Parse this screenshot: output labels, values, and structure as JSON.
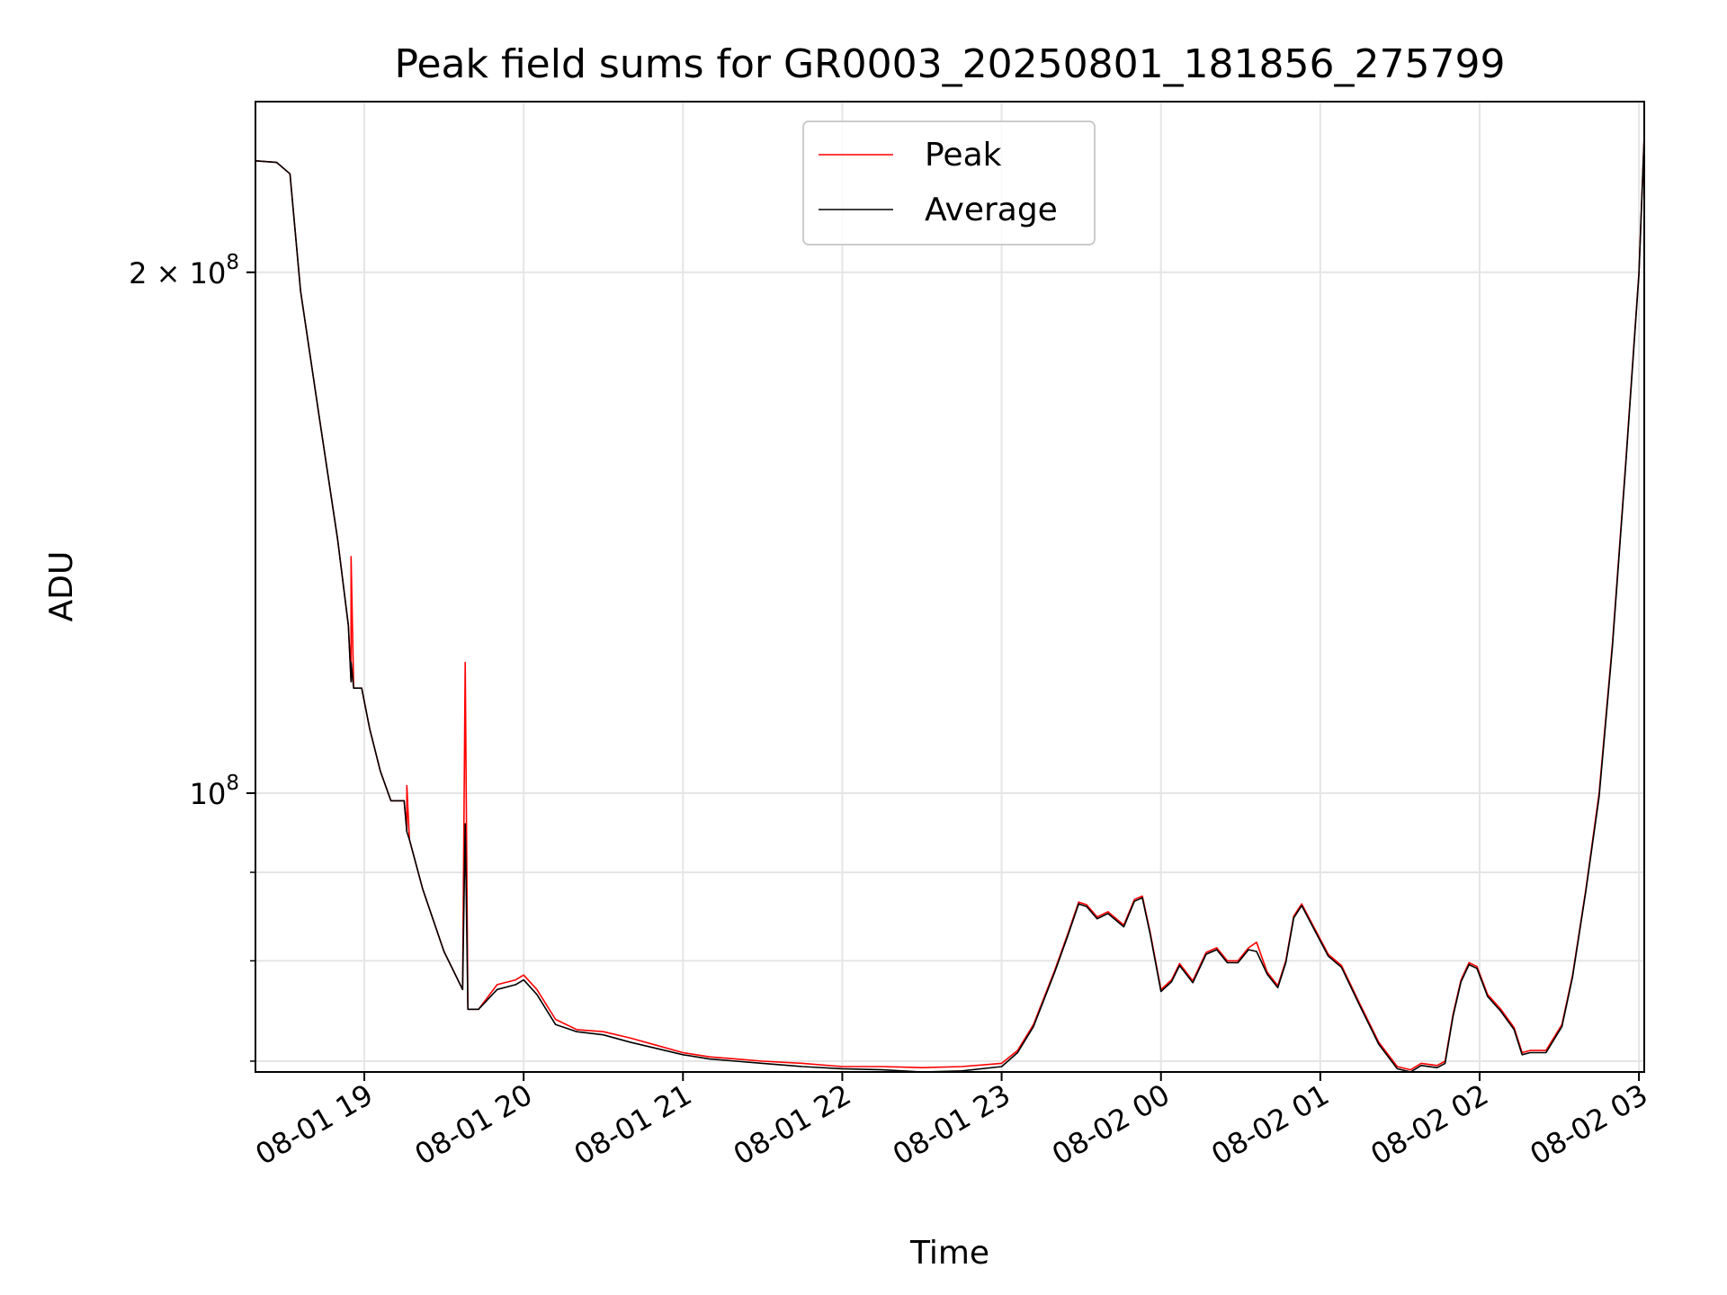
{
  "chart_data": {
    "type": "line",
    "title": "Peak field sums for GR0003_20250801_181856_275799",
    "xlabel": "Time",
    "ylabel": "ADU",
    "y_scale": "log",
    "grid": true,
    "legend_position": "top-center",
    "xlim": [
      "2025-08-01 18:19",
      "2025-08-02 03:02"
    ],
    "ylim": [
      69000000,
      251000000
    ],
    "x_ticks": [
      {
        "label": "08-01 19",
        "time": "2025-08-01 19:00"
      },
      {
        "label": "08-01 20",
        "time": "2025-08-01 20:00"
      },
      {
        "label": "08-01 21",
        "time": "2025-08-01 21:00"
      },
      {
        "label": "08-01 22",
        "time": "2025-08-01 22:00"
      },
      {
        "label": "08-01 23",
        "time": "2025-08-01 23:00"
      },
      {
        "label": "08-02 00",
        "time": "2025-08-02 00:00"
      },
      {
        "label": "08-02 01",
        "time": "2025-08-02 01:00"
      },
      {
        "label": "08-02 02",
        "time": "2025-08-02 02:00"
      },
      {
        "label": "08-02 03",
        "time": "2025-08-02 03:00"
      }
    ],
    "y_major_ticks": [
      {
        "value": 100000000,
        "base": "10",
        "exp": "8",
        "mult": ""
      },
      {
        "value": 200000000,
        "base": "10",
        "exp": "8",
        "mult": "2 × "
      }
    ],
    "y_minor_ticks": [
      70000000,
      80000000,
      90000000
    ],
    "series": [
      {
        "name": "Peak",
        "color": "#ff0000",
        "points": [
          [
            "2025-08-01 18:19",
            232000000
          ],
          [
            "2025-08-01 18:27",
            231500000
          ],
          [
            "2025-08-01 18:32",
            228000000
          ],
          [
            "2025-08-01 18:36",
            195000000
          ],
          [
            "2025-08-01 18:43",
            165000000
          ],
          [
            "2025-08-01 18:50",
            140000000
          ],
          [
            "2025-08-01 18:54",
            125000000
          ],
          [
            "2025-08-01 18:55",
            116000000
          ],
          [
            "2025-08-01 18:55",
            137000000
          ],
          [
            "2025-08-01 18:56",
            115000000
          ],
          [
            "2025-08-01 18:59",
            115000000
          ],
          [
            "2025-08-01 19:02",
            109000000
          ],
          [
            "2025-08-01 19:06",
            103000000
          ],
          [
            "2025-08-01 19:10",
            99000000
          ],
          [
            "2025-08-01 19:15",
            99000000
          ],
          [
            "2025-08-01 19:16",
            95000000
          ],
          [
            "2025-08-01 19:16",
            101000000
          ],
          [
            "2025-08-01 19:17",
            94000000
          ],
          [
            "2025-08-01 19:22",
            88000000
          ],
          [
            "2025-08-01 19:30",
            81000000
          ],
          [
            "2025-08-01 19:37",
            77000000
          ],
          [
            "2025-08-01 19:38",
            119000000
          ],
          [
            "2025-08-01 19:39",
            75000000
          ],
          [
            "2025-08-01 19:43",
            75000000
          ],
          [
            "2025-08-01 19:50",
            77500000
          ],
          [
            "2025-08-01 19:57",
            78000000
          ],
          [
            "2025-08-01 20:00",
            78500000
          ],
          [
            "2025-08-01 20:05",
            77000000
          ],
          [
            "2025-08-01 20:12",
            74000000
          ],
          [
            "2025-08-01 20:20",
            73000000
          ],
          [
            "2025-08-01 20:30",
            72800000
          ],
          [
            "2025-08-01 20:40",
            72200000
          ],
          [
            "2025-08-01 20:50",
            71500000
          ],
          [
            "2025-08-01 21:00",
            70800000
          ],
          [
            "2025-08-01 21:10",
            70400000
          ],
          [
            "2025-08-01 21:20",
            70200000
          ],
          [
            "2025-08-01 21:30",
            70000000
          ],
          [
            "2025-08-01 21:45",
            69800000
          ],
          [
            "2025-08-01 22:00",
            69500000
          ],
          [
            "2025-08-01 22:15",
            69500000
          ],
          [
            "2025-08-01 22:30",
            69400000
          ],
          [
            "2025-08-01 22:45",
            69500000
          ],
          [
            "2025-08-01 23:00",
            69800000
          ],
          [
            "2025-08-01 23:06",
            71000000
          ],
          [
            "2025-08-01 23:12",
            73500000
          ],
          [
            "2025-08-01 23:20",
            79000000
          ],
          [
            "2025-08-01 23:25",
            83000000
          ],
          [
            "2025-08-01 23:29",
            86500000
          ],
          [
            "2025-08-01 23:32",
            86200000
          ],
          [
            "2025-08-01 23:36",
            84800000
          ],
          [
            "2025-08-01 23:40",
            85400000
          ],
          [
            "2025-08-01 23:46",
            83900000
          ],
          [
            "2025-08-01 23:50",
            86800000
          ],
          [
            "2025-08-01 23:53",
            87200000
          ],
          [
            "2025-08-01 23:56",
            83000000
          ],
          [
            "2025-08-02 00:00",
            77000000
          ],
          [
            "2025-08-02 00:04",
            78000000
          ],
          [
            "2025-08-02 00:07",
            79700000
          ],
          [
            "2025-08-02 00:12",
            77900000
          ],
          [
            "2025-08-02 00:17",
            80900000
          ],
          [
            "2025-08-02 00:21",
            81400000
          ],
          [
            "2025-08-02 00:25",
            80000000
          ],
          [
            "2025-08-02 00:29",
            80000000
          ],
          [
            "2025-08-02 00:33",
            81400000
          ],
          [
            "2025-08-02 00:36",
            82000000
          ],
          [
            "2025-08-02 00:40",
            78800000
          ],
          [
            "2025-08-02 00:44",
            77400000
          ],
          [
            "2025-08-02 00:47",
            80000000
          ],
          [
            "2025-08-02 00:50",
            84900000
          ],
          [
            "2025-08-02 00:53",
            86300000
          ],
          [
            "2025-08-02 00:57",
            84000000
          ],
          [
            "2025-08-02 01:03",
            80700000
          ],
          [
            "2025-08-02 01:08",
            79500000
          ],
          [
            "2025-08-02 01:15",
            75500000
          ],
          [
            "2025-08-02 01:22",
            71800000
          ],
          [
            "2025-08-02 01:29",
            69500000
          ],
          [
            "2025-08-02 01:34",
            69200000
          ],
          [
            "2025-08-02 01:38",
            69800000
          ],
          [
            "2025-08-02 01:44",
            69600000
          ],
          [
            "2025-08-02 01:47",
            70000000
          ],
          [
            "2025-08-02 01:50",
            74500000
          ],
          [
            "2025-08-02 01:53",
            78000000
          ],
          [
            "2025-08-02 01:56",
            79800000
          ],
          [
            "2025-08-02 01:59",
            79400000
          ],
          [
            "2025-08-02 02:03",
            76500000
          ],
          [
            "2025-08-02 02:08",
            75000000
          ],
          [
            "2025-08-02 02:13",
            73200000
          ],
          [
            "2025-08-02 02:16",
            70800000
          ],
          [
            "2025-08-02 02:19",
            71000000
          ],
          [
            "2025-08-02 02:25",
            71000000
          ],
          [
            "2025-08-02 02:31",
            73500000
          ],
          [
            "2025-08-02 02:35",
            78500000
          ],
          [
            "2025-08-02 02:40",
            88000000
          ],
          [
            "2025-08-02 02:45",
            100000000
          ],
          [
            "2025-08-02 02:50",
            122000000
          ],
          [
            "2025-08-02 02:55",
            155000000
          ],
          [
            "2025-08-02 03:00",
            200000000
          ],
          [
            "2025-08-02 03:02",
            240000000
          ]
        ]
      },
      {
        "name": "Average",
        "color": "#000000",
        "points": [
          [
            "2025-08-01 18:19",
            232000000
          ],
          [
            "2025-08-01 18:27",
            231500000
          ],
          [
            "2025-08-01 18:32",
            228000000
          ],
          [
            "2025-08-01 18:36",
            195000000
          ],
          [
            "2025-08-01 18:43",
            165000000
          ],
          [
            "2025-08-01 18:50",
            140000000
          ],
          [
            "2025-08-01 18:54",
            125000000
          ],
          [
            "2025-08-01 18:55",
            116000000
          ],
          [
            "2025-08-01 18:55",
            119000000
          ],
          [
            "2025-08-01 18:56",
            115000000
          ],
          [
            "2025-08-01 18:59",
            115000000
          ],
          [
            "2025-08-01 19:02",
            109000000
          ],
          [
            "2025-08-01 19:06",
            103000000
          ],
          [
            "2025-08-01 19:10",
            99000000
          ],
          [
            "2025-08-01 19:15",
            99000000
          ],
          [
            "2025-08-01 19:16",
            95000000
          ],
          [
            "2025-08-01 19:17",
            94000000
          ],
          [
            "2025-08-01 19:22",
            88000000
          ],
          [
            "2025-08-01 19:30",
            81000000
          ],
          [
            "2025-08-01 19:37",
            77000000
          ],
          [
            "2025-08-01 19:38",
            96000000
          ],
          [
            "2025-08-01 19:39",
            75000000
          ],
          [
            "2025-08-01 19:43",
            75000000
          ],
          [
            "2025-08-01 19:50",
            77000000
          ],
          [
            "2025-08-01 19:57",
            77500000
          ],
          [
            "2025-08-01 20:00",
            78000000
          ],
          [
            "2025-08-01 20:05",
            76500000
          ],
          [
            "2025-08-01 20:12",
            73500000
          ],
          [
            "2025-08-01 20:20",
            72800000
          ],
          [
            "2025-08-01 20:30",
            72500000
          ],
          [
            "2025-08-01 20:40",
            71800000
          ],
          [
            "2025-08-01 20:50",
            71200000
          ],
          [
            "2025-08-01 21:00",
            70600000
          ],
          [
            "2025-08-01 21:10",
            70200000
          ],
          [
            "2025-08-01 21:20",
            70000000
          ],
          [
            "2025-08-01 21:30",
            69800000
          ],
          [
            "2025-08-01 21:45",
            69500000
          ],
          [
            "2025-08-01 22:00",
            69300000
          ],
          [
            "2025-08-01 22:15",
            69200000
          ],
          [
            "2025-08-01 22:30",
            69000000
          ],
          [
            "2025-08-01 22:45",
            69100000
          ],
          [
            "2025-08-01 23:00",
            69500000
          ],
          [
            "2025-08-01 23:06",
            70800000
          ],
          [
            "2025-08-01 23:12",
            73300000
          ],
          [
            "2025-08-01 23:20",
            78800000
          ],
          [
            "2025-08-01 23:25",
            82800000
          ],
          [
            "2025-08-01 23:29",
            86300000
          ],
          [
            "2025-08-01 23:32",
            86000000
          ],
          [
            "2025-08-01 23:36",
            84600000
          ],
          [
            "2025-08-01 23:40",
            85200000
          ],
          [
            "2025-08-01 23:46",
            83700000
          ],
          [
            "2025-08-01 23:50",
            86600000
          ],
          [
            "2025-08-01 23:53",
            87000000
          ],
          [
            "2025-08-01 23:56",
            82800000
          ],
          [
            "2025-08-02 00:00",
            76800000
          ],
          [
            "2025-08-02 00:04",
            77800000
          ],
          [
            "2025-08-02 00:07",
            79500000
          ],
          [
            "2025-08-02 00:12",
            77700000
          ],
          [
            "2025-08-02 00:17",
            80700000
          ],
          [
            "2025-08-02 00:21",
            81200000
          ],
          [
            "2025-08-02 00:25",
            79800000
          ],
          [
            "2025-08-02 00:29",
            79800000
          ],
          [
            "2025-08-02 00:33",
            81200000
          ],
          [
            "2025-08-02 00:36",
            81000000
          ],
          [
            "2025-08-02 00:40",
            78600000
          ],
          [
            "2025-08-02 00:44",
            77200000
          ],
          [
            "2025-08-02 00:47",
            79800000
          ],
          [
            "2025-08-02 00:50",
            84700000
          ],
          [
            "2025-08-02 00:53",
            86100000
          ],
          [
            "2025-08-02 00:57",
            83800000
          ],
          [
            "2025-08-02 01:03",
            80500000
          ],
          [
            "2025-08-02 01:08",
            79300000
          ],
          [
            "2025-08-02 01:15",
            75300000
          ],
          [
            "2025-08-02 01:22",
            71600000
          ],
          [
            "2025-08-02 01:29",
            69300000
          ],
          [
            "2025-08-02 01:34",
            69000000
          ],
          [
            "2025-08-02 01:38",
            69600000
          ],
          [
            "2025-08-02 01:44",
            69400000
          ],
          [
            "2025-08-02 01:47",
            69800000
          ],
          [
            "2025-08-02 01:50",
            74300000
          ],
          [
            "2025-08-02 01:53",
            77800000
          ],
          [
            "2025-08-02 01:56",
            79600000
          ],
          [
            "2025-08-02 01:59",
            79200000
          ],
          [
            "2025-08-02 02:03",
            76300000
          ],
          [
            "2025-08-02 02:08",
            74800000
          ],
          [
            "2025-08-02 02:13",
            73000000
          ],
          [
            "2025-08-02 02:16",
            70600000
          ],
          [
            "2025-08-02 02:19",
            70800000
          ],
          [
            "2025-08-02 02:25",
            70800000
          ],
          [
            "2025-08-02 02:31",
            73300000
          ],
          [
            "2025-08-02 02:35",
            78300000
          ],
          [
            "2025-08-02 02:40",
            87800000
          ],
          [
            "2025-08-02 02:45",
            99500000
          ],
          [
            "2025-08-02 02:50",
            121500000
          ],
          [
            "2025-08-02 02:55",
            154500000
          ],
          [
            "2025-08-02 03:00",
            199500000
          ],
          [
            "2025-08-02 03:02",
            240000000
          ]
        ]
      }
    ]
  }
}
